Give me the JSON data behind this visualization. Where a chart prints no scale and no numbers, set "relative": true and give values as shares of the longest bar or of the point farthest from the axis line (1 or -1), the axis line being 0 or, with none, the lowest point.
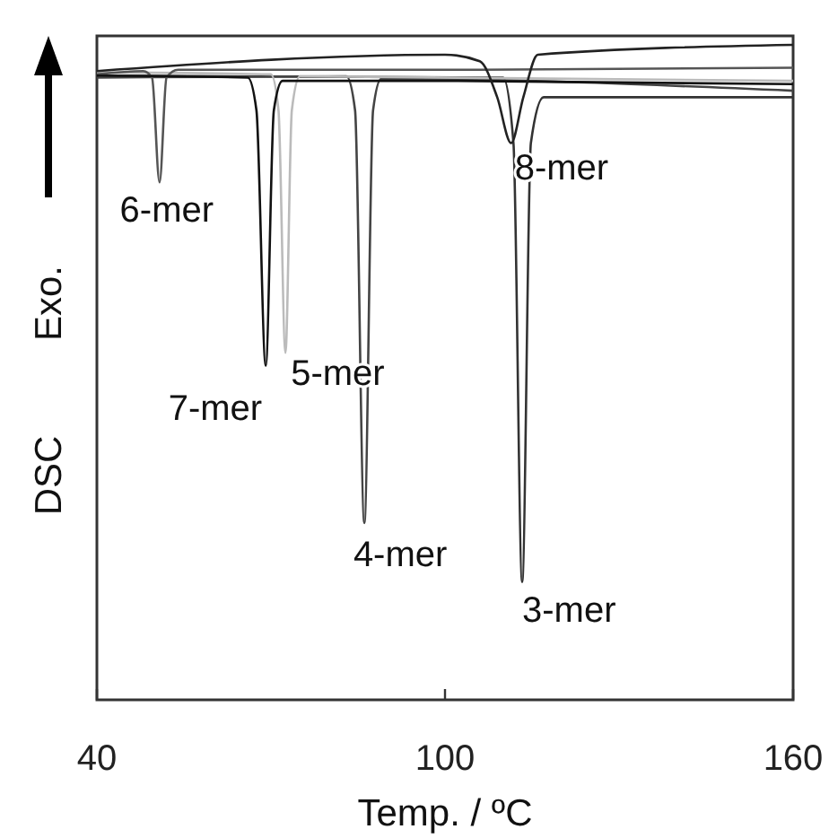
{
  "chart_data": {
    "type": "line",
    "relative": true,
    "xlabel": "Temp. / ºC",
    "ylabel": "DSC",
    "annotations": [
      "Exo."
    ],
    "xlim": [
      40,
      160
    ],
    "xticks": [
      40,
      100,
      160
    ],
    "grid": false,
    "marker": "none",
    "line_style": "solid",
    "series": [
      {
        "name": "3-mer",
        "color": "#333333",
        "x": [
          40,
          110,
          111.8,
          113.3,
          114.8,
          117,
          160
        ],
        "values": [
          0.953,
          0.95,
          0.85,
          0.18,
          0.85,
          0.92,
          0.92
        ]
      },
      {
        "name": "4-mer",
        "color": "#444444",
        "x": [
          40,
          83,
          84.5,
          86.1,
          87.6,
          89,
          160
        ],
        "values": [
          0.95,
          0.952,
          0.9,
          0.27,
          0.9,
          0.948,
          0.93
        ]
      },
      {
        "name": "5-mer",
        "color": "#bbbbbb",
        "x": [
          40,
          70,
          71.3,
          72.5,
          73.6,
          75,
          160
        ],
        "values": [
          0.958,
          0.955,
          0.9,
          0.53,
          0.9,
          0.952,
          0.945
        ]
      },
      {
        "name": "6-mer",
        "color": "#555555",
        "x": [
          40,
          48,
          49.5,
          50.8,
          52,
          54,
          100,
          160
        ],
        "values": [
          0.955,
          0.96,
          0.95,
          0.79,
          0.95,
          0.962,
          0.962,
          0.965
        ]
      },
      {
        "name": "7-mer",
        "color": "#111111",
        "x": [
          40,
          66,
          67.5,
          69.1,
          70.5,
          72,
          100,
          160
        ],
        "values": [
          0.953,
          0.95,
          0.9,
          0.51,
          0.9,
          0.945,
          0.945,
          0.94
        ]
      },
      {
        "name": "8-mer",
        "color": "#222222",
        "x": [
          40,
          100,
          106,
          109,
          111.4,
          113.5,
          116,
          160
        ],
        "values": [
          0.96,
          0.985,
          0.975,
          0.92,
          0.85,
          0.92,
          0.985,
          1
        ]
      }
    ]
  }
}
